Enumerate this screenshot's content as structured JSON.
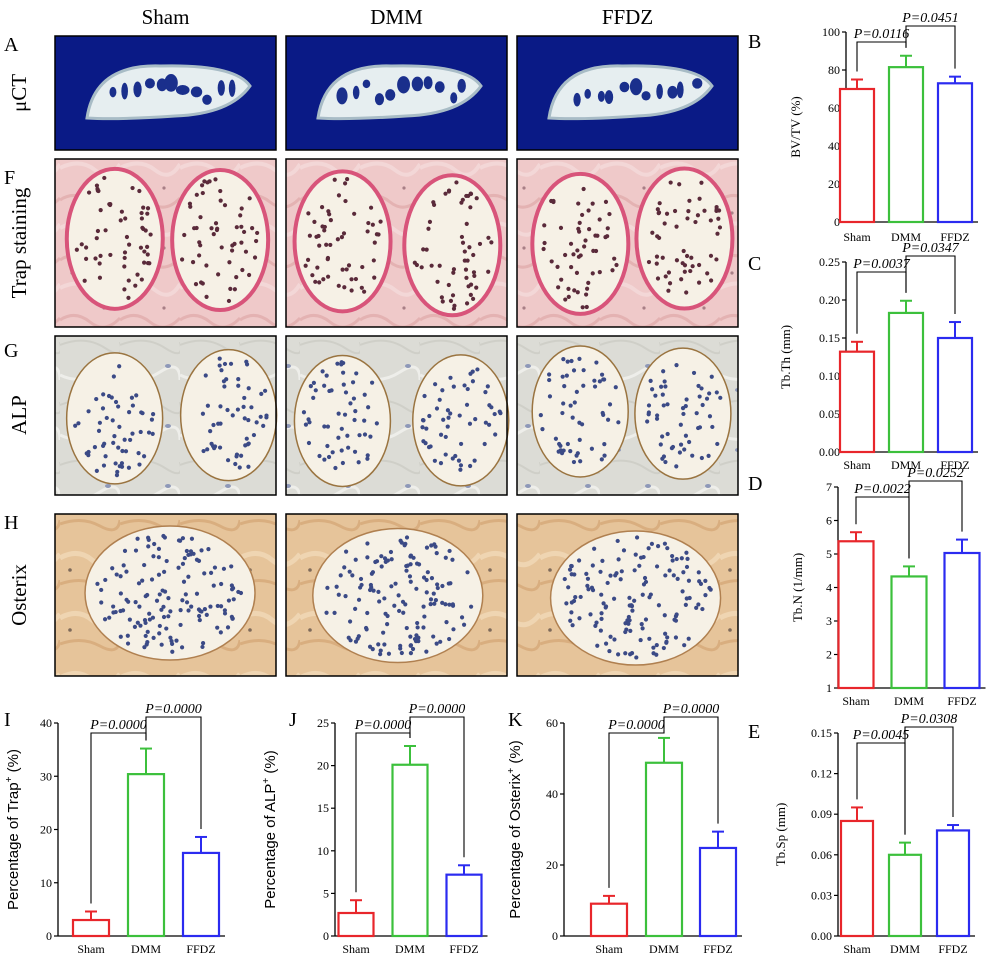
{
  "figure": {
    "columns": [
      "Sham",
      "DMM",
      "FFDZ"
    ],
    "rows": [
      {
        "letter": "A",
        "label": "μCT",
        "kind": "ct"
      },
      {
        "letter": "F",
        "label": "Trap staining",
        "kind": "trap"
      },
      {
        "letter": "G",
        "label": "ALP",
        "kind": "alp"
      },
      {
        "letter": "H",
        "label": "Osterix",
        "kind": "osx"
      }
    ],
    "colors": {
      "sham": "#e8262b",
      "dmm": "#3cc03c",
      "ffdz": "#2b2bf0",
      "ct_bg": "#0a1a86",
      "trap_bg": "#efc9c9",
      "alp_bg": "#dcdcd6",
      "osx_bg": "#e6c49a"
    }
  },
  "chart_data": [
    {
      "id": "B",
      "letter": "B",
      "type": "bar",
      "categories": [
        "Sham",
        "DMM",
        "FFDZ"
      ],
      "values": [
        70,
        81.5,
        73
      ],
      "errors": [
        5,
        6,
        3.5
      ],
      "ylabel": "BV/TV (%)",
      "ylim": [
        0,
        100
      ],
      "yticks": [
        "0",
        "20",
        "40",
        "60",
        "80",
        "100"
      ],
      "comparisons": [
        {
          "from": 0,
          "to": 1,
          "label": "P=0.0116"
        },
        {
          "from": 1,
          "to": 2,
          "label": "P=0.0451"
        }
      ]
    },
    {
      "id": "C",
      "letter": "C",
      "type": "bar",
      "categories": [
        "Sham",
        "DMM",
        "FFDZ"
      ],
      "values": [
        0.132,
        0.183,
        0.15
      ],
      "errors": [
        0.013,
        0.016,
        0.021
      ],
      "ylabel": "Tb.Th (mm)",
      "ylim": [
        0,
        0.25
      ],
      "yticks": [
        "0.00",
        "0.05",
        "0.10",
        "0.15",
        "0.20",
        "0.25"
      ],
      "comparisons": [
        {
          "from": 0,
          "to": 1,
          "label": "P=0.0037"
        },
        {
          "from": 1,
          "to": 2,
          "label": "P=0.0347"
        }
      ]
    },
    {
      "id": "D",
      "letter": "D",
      "type": "bar",
      "categories": [
        "Sham",
        "DMM",
        "FFDZ"
      ],
      "values": [
        5.38,
        4.33,
        5.03
      ],
      "errors": [
        0.27,
        0.3,
        0.4
      ],
      "ylabel": "Tb.N (1/mm)",
      "ylim": [
        1,
        7
      ],
      "yticks": [
        "1",
        "2",
        "3",
        "4",
        "5",
        "6",
        "7"
      ],
      "comparisons": [
        {
          "from": 0,
          "to": 1,
          "label": "P=0.0022"
        },
        {
          "from": 1,
          "to": 2,
          "label": "P=0.0252"
        }
      ]
    },
    {
      "id": "E",
      "letter": "E",
      "type": "bar",
      "categories": [
        "Sham",
        "DMM",
        "FFDZ"
      ],
      "values": [
        0.085,
        0.06,
        0.078
      ],
      "errors": [
        0.01,
        0.009,
        0.004
      ],
      "ylabel": "Tb.Sp (mm)",
      "ylim": [
        0,
        0.15
      ],
      "yticks": [
        "0.00",
        "0.03",
        "0.06",
        "0.09",
        "0.12",
        "0.15"
      ],
      "comparisons": [
        {
          "from": 0,
          "to": 1,
          "label": "P=0.0045"
        },
        {
          "from": 1,
          "to": 2,
          "label": "P=0.0308"
        }
      ]
    },
    {
      "id": "I",
      "letter": "I",
      "type": "bar",
      "categories": [
        "Sham",
        "DMM",
        "FFDZ"
      ],
      "values": [
        3,
        30.4,
        15.6
      ],
      "errors": [
        1.6,
        4.8,
        3
      ],
      "ylabel": "Percentage of Trap",
      "ylabel_sup": "+",
      "ylabel_tail": " (%)",
      "ylim": [
        0,
        40
      ],
      "yticks": [
        "0",
        "10",
        "20",
        "30",
        "40"
      ],
      "comparisons": [
        {
          "from": 0,
          "to": 1,
          "label": "P=0.0000"
        },
        {
          "from": 1,
          "to": 2,
          "label": "P=0.0000"
        }
      ]
    },
    {
      "id": "J",
      "letter": "J",
      "type": "bar",
      "categories": [
        "Sham",
        "DMM",
        "FFDZ"
      ],
      "values": [
        2.7,
        20.1,
        7.2
      ],
      "errors": [
        1.5,
        2.2,
        1.1
      ],
      "ylabel": "Percentage of ALP",
      "ylabel_sup": "+",
      "ylabel_tail": " (%)",
      "ylim": [
        0,
        25
      ],
      "yticks": [
        "0",
        "5",
        "10",
        "15",
        "20",
        "25"
      ],
      "comparisons": [
        {
          "from": 0,
          "to": 1,
          "label": "P=0.0000"
        },
        {
          "from": 1,
          "to": 2,
          "label": "P=0.0000"
        }
      ]
    },
    {
      "id": "K",
      "letter": "K",
      "type": "bar",
      "categories": [
        "Sham",
        "DMM",
        "FFDZ"
      ],
      "values": [
        9.1,
        48.8,
        24.8
      ],
      "errors": [
        2.2,
        7,
        4.6
      ],
      "ylabel": "Percentage of Osterix",
      "ylabel_sup": "+",
      "ylabel_tail": " (%)",
      "ylim": [
        0,
        60
      ],
      "yticks": [
        "0",
        "20",
        "40",
        "60"
      ],
      "comparisons": [
        {
          "from": 0,
          "to": 1,
          "label": "P=0.0000"
        },
        {
          "from": 1,
          "to": 2,
          "label": "P=0.0000"
        }
      ]
    }
  ]
}
